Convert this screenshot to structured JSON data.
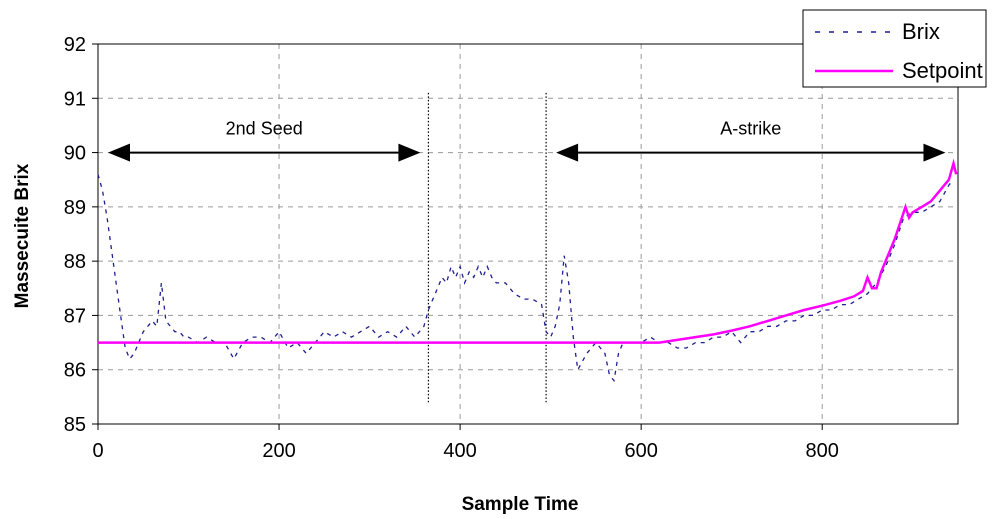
{
  "chart_data": {
    "type": "line",
    "title": "",
    "xlabel": "Sample Time",
    "ylabel": "Massecuite Brix",
    "xlim": [
      0,
      950
    ],
    "ylim": [
      85,
      92
    ],
    "xticks": [
      0,
      200,
      400,
      600,
      800
    ],
    "xtick_labels": [
      "0",
      "200",
      "400",
      "600",
      "800"
    ],
    "yticks": [
      85,
      86,
      87,
      88,
      89,
      90,
      91,
      92
    ],
    "ytick_labels": [
      "85",
      "86",
      "87",
      "88",
      "89",
      "90",
      "91",
      "92"
    ],
    "grid": true,
    "legend": "top-right",
    "series": [
      {
        "name": "Brix",
        "style": "dashed",
        "color": "#1f1f8f",
        "points": [
          [
            0,
            89.6
          ],
          [
            5,
            89.3
          ],
          [
            10,
            88.8
          ],
          [
            15,
            88.2
          ],
          [
            20,
            87.6
          ],
          [
            25,
            87.0
          ],
          [
            30,
            86.4
          ],
          [
            35,
            86.2
          ],
          [
            40,
            86.3
          ],
          [
            45,
            86.5
          ],
          [
            50,
            86.7
          ],
          [
            55,
            86.8
          ],
          [
            60,
            86.9
          ],
          [
            65,
            86.8
          ],
          [
            70,
            87.6
          ],
          [
            75,
            86.9
          ],
          [
            80,
            86.8
          ],
          [
            85,
            86.7
          ],
          [
            90,
            86.7
          ],
          [
            95,
            86.6
          ],
          [
            100,
            86.6
          ],
          [
            110,
            86.5
          ],
          [
            120,
            86.6
          ],
          [
            130,
            86.5
          ],
          [
            140,
            86.5
          ],
          [
            150,
            86.2
          ],
          [
            160,
            86.5
          ],
          [
            170,
            86.6
          ],
          [
            180,
            86.6
          ],
          [
            190,
            86.5
          ],
          [
            200,
            86.7
          ],
          [
            210,
            86.4
          ],
          [
            220,
            86.5
          ],
          [
            230,
            86.3
          ],
          [
            240,
            86.5
          ],
          [
            250,
            86.7
          ],
          [
            260,
            86.6
          ],
          [
            270,
            86.7
          ],
          [
            280,
            86.6
          ],
          [
            290,
            86.7
          ],
          [
            300,
            86.8
          ],
          [
            310,
            86.6
          ],
          [
            320,
            86.7
          ],
          [
            330,
            86.6
          ],
          [
            340,
            86.8
          ],
          [
            350,
            86.6
          ],
          [
            360,
            86.8
          ],
          [
            365,
            87.1
          ],
          [
            370,
            87.3
          ],
          [
            375,
            87.5
          ],
          [
            380,
            87.7
          ],
          [
            385,
            87.6
          ],
          [
            390,
            87.9
          ],
          [
            395,
            87.7
          ],
          [
            400,
            87.9
          ],
          [
            405,
            87.6
          ],
          [
            410,
            87.8
          ],
          [
            415,
            87.7
          ],
          [
            420,
            87.9
          ],
          [
            425,
            87.7
          ],
          [
            430,
            87.9
          ],
          [
            435,
            87.7
          ],
          [
            440,
            87.6
          ],
          [
            450,
            87.6
          ],
          [
            460,
            87.4
          ],
          [
            470,
            87.3
          ],
          [
            480,
            87.3
          ],
          [
            490,
            87.2
          ],
          [
            495,
            86.7
          ],
          [
            500,
            86.6
          ],
          [
            505,
            86.8
          ],
          [
            510,
            87.2
          ],
          [
            515,
            88.1
          ],
          [
            520,
            87.6
          ],
          [
            525,
            86.6
          ],
          [
            530,
            86.0
          ],
          [
            540,
            86.3
          ],
          [
            550,
            86.5
          ],
          [
            560,
            86.3
          ],
          [
            565,
            85.9
          ],
          [
            570,
            85.8
          ],
          [
            575,
            86.3
          ],
          [
            580,
            86.5
          ],
          [
            590,
            86.5
          ],
          [
            600,
            86.5
          ],
          [
            610,
            86.6
          ],
          [
            620,
            86.5
          ],
          [
            630,
            86.5
          ],
          [
            640,
            86.4
          ],
          [
            650,
            86.4
          ],
          [
            660,
            86.5
          ],
          [
            670,
            86.5
          ],
          [
            680,
            86.6
          ],
          [
            690,
            86.6
          ],
          [
            700,
            86.7
          ],
          [
            710,
            86.5
          ],
          [
            720,
            86.7
          ],
          [
            730,
            86.7
          ],
          [
            740,
            86.8
          ],
          [
            750,
            86.8
          ],
          [
            760,
            86.9
          ],
          [
            770,
            86.9
          ],
          [
            780,
            87.0
          ],
          [
            790,
            87.0
          ],
          [
            800,
            87.1
          ],
          [
            810,
            87.1
          ],
          [
            820,
            87.2
          ],
          [
            830,
            87.2
          ],
          [
            840,
            87.3
          ],
          [
            850,
            87.4
          ],
          [
            860,
            87.6
          ],
          [
            870,
            87.9
          ],
          [
            880,
            88.3
          ],
          [
            890,
            88.8
          ],
          [
            900,
            88.9
          ],
          [
            910,
            88.9
          ],
          [
            920,
            89.0
          ],
          [
            930,
            89.1
          ],
          [
            940,
            89.4
          ],
          [
            945,
            89.5
          ]
        ]
      },
      {
        "name": "Setpoint",
        "style": "solid",
        "color": "#ff00ff",
        "points": [
          [
            0,
            86.5
          ],
          [
            620,
            86.5
          ],
          [
            640,
            86.55
          ],
          [
            660,
            86.6
          ],
          [
            680,
            86.65
          ],
          [
            700,
            86.72
          ],
          [
            720,
            86.8
          ],
          [
            740,
            86.9
          ],
          [
            760,
            87.0
          ],
          [
            780,
            87.1
          ],
          [
            800,
            87.18
          ],
          [
            820,
            87.27
          ],
          [
            835,
            87.35
          ],
          [
            845,
            87.45
          ],
          [
            850,
            87.7
          ],
          [
            855,
            87.5
          ],
          [
            860,
            87.5
          ],
          [
            865,
            87.8
          ],
          [
            870,
            88.0
          ],
          [
            880,
            88.4
          ],
          [
            888,
            88.8
          ],
          [
            892,
            89.0
          ],
          [
            896,
            88.8
          ],
          [
            900,
            88.9
          ],
          [
            910,
            89.0
          ],
          [
            920,
            89.1
          ],
          [
            930,
            89.3
          ],
          [
            935,
            89.4
          ],
          [
            940,
            89.5
          ],
          [
            945,
            89.8
          ],
          [
            948,
            89.6
          ]
        ]
      }
    ],
    "annotations": [
      {
        "label": "2nd Seed",
        "x_start": 0,
        "x_end": 365,
        "y": 90
      },
      {
        "label": "A-strike",
        "x_start": 495,
        "x_end": 945,
        "y": 90
      }
    ],
    "vertical_markers": [
      365,
      495
    ]
  }
}
